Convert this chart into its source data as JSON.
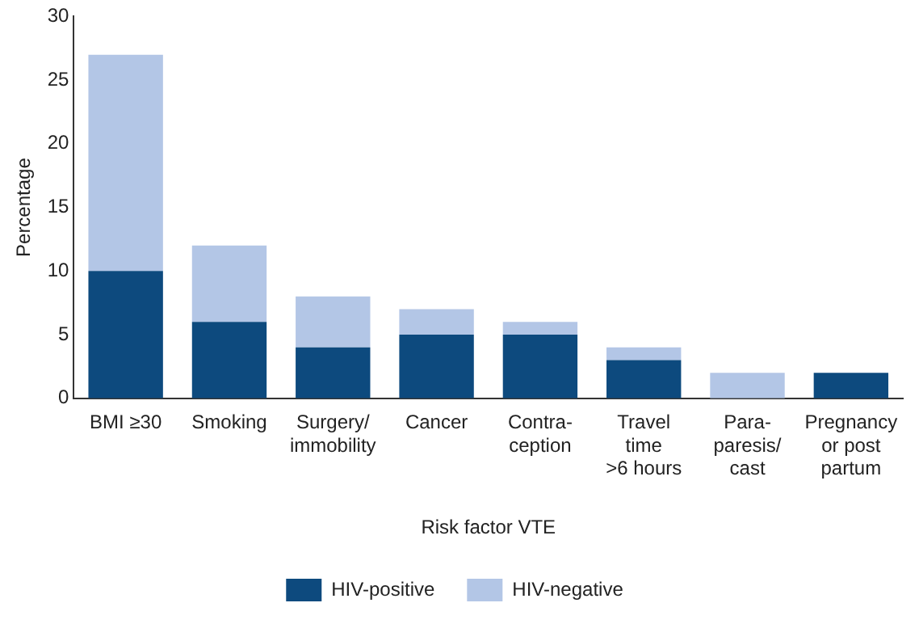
{
  "chart_data": {
    "type": "bar",
    "stacked": true,
    "xlabel": "Risk factor VTE",
    "ylabel": "Percentage",
    "categories": [
      "BMI ≥30",
      "Smoking",
      "Surgery/\nimmobility",
      "Cancer",
      "Contra-\nception",
      "Travel\ntime\n>6 hours",
      "Para-\nparesis/\ncast",
      "Pregnancy\nor post\npartum"
    ],
    "series": [
      {
        "name": "HIV-positive",
        "color": "#0d4a7e",
        "values": [
          10,
          6,
          4,
          5,
          5,
          3,
          0,
          2
        ]
      },
      {
        "name": "HIV-negative",
        "color": "#b3c6e6",
        "values": [
          17,
          6,
          4,
          2,
          1,
          1,
          2,
          0
        ]
      }
    ],
    "ylim": [
      0,
      30
    ],
    "yticks": [
      0,
      5,
      10,
      15,
      20,
      25,
      30
    ],
    "grid": false,
    "legend": "bottom"
  }
}
